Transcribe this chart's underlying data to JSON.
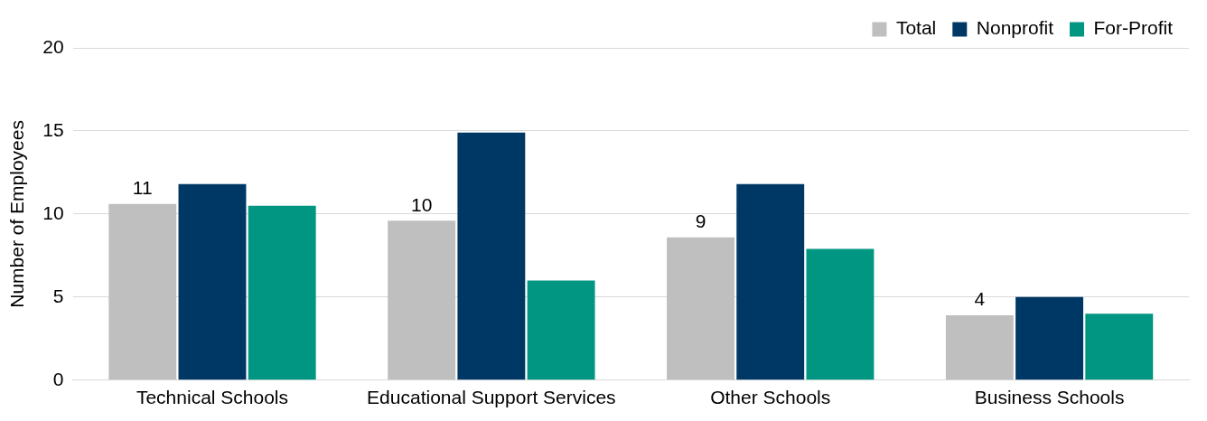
{
  "chart_data": {
    "type": "bar",
    "ylabel": "Number of Employees",
    "categories": [
      "Technical Schools",
      "Educational Support Services",
      "Other Schools",
      "Business Schools"
    ],
    "series": [
      {
        "name": "Total",
        "color": "#bfbfbf",
        "values": [
          10.6,
          9.6,
          8.6,
          3.9
        ],
        "value_labels": [
          "11",
          "10",
          "9",
          "4"
        ]
      },
      {
        "name": "Nonprofit",
        "color": "#003865",
        "values": [
          11.8,
          14.9,
          11.8,
          5.0
        ]
      },
      {
        "name": "For-Profit",
        "color": "#009681",
        "values": [
          10.5,
          6.0,
          7.9,
          4.0
        ]
      }
    ],
    "ylim": [
      0,
      20
    ],
    "yticks": [
      0,
      5,
      10,
      15,
      20
    ],
    "grid": "y",
    "legend": "top right"
  }
}
